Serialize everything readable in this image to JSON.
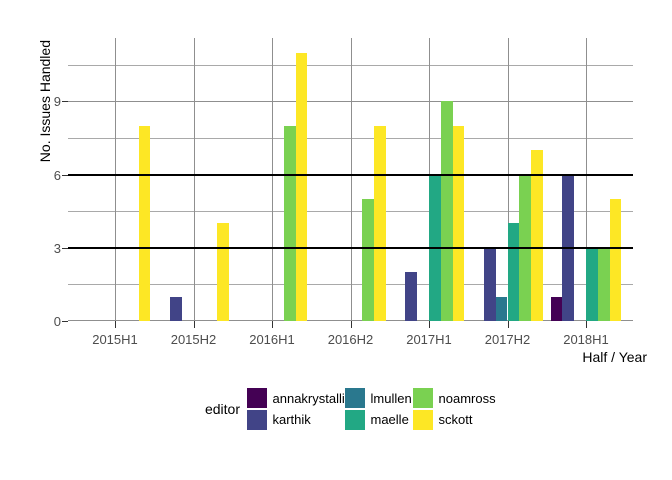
{
  "chart_data": {
    "type": "bar",
    "title": "",
    "xlabel": "Half / Year",
    "ylabel": "No. Issues Handled",
    "legend_title": "editor",
    "legend_position": "bottom",
    "categories": [
      "2015H1",
      "2015H2",
      "2016H1",
      "2016H2",
      "2017H1",
      "2017H2",
      "2018H1"
    ],
    "series": [
      {
        "name": "annakrystalli",
        "color": "#440154",
        "values": [
          null,
          null,
          null,
          null,
          null,
          null,
          1
        ]
      },
      {
        "name": "karthik",
        "color": "#414487",
        "values": [
          null,
          1,
          null,
          null,
          2,
          3,
          6
        ]
      },
      {
        "name": "lmullen",
        "color": "#2A788E",
        "values": [
          null,
          null,
          null,
          null,
          null,
          1,
          null
        ]
      },
      {
        "name": "maelle",
        "color": "#22A884",
        "values": [
          null,
          null,
          null,
          null,
          6,
          4,
          3
        ]
      },
      {
        "name": "noamross",
        "color": "#7AD151",
        "values": [
          null,
          null,
          8,
          5,
          9,
          6,
          3
        ]
      },
      {
        "name": "sckott",
        "color": "#FDE725",
        "values": [
          8,
          4,
          11,
          8,
          8,
          7,
          5
        ]
      }
    ],
    "y_ticks": [
      0,
      3,
      6,
      9
    ],
    "y_minor_gridlines": [
      1.5,
      4.5,
      7.5,
      10.5
    ],
    "ylim": [
      0,
      11.6
    ],
    "reference_lines": [
      3,
      6
    ],
    "grid": true,
    "colors": {
      "background": "#ffffff",
      "grid_major": "#8f8f8f",
      "grid_minor": "#a9a9a9",
      "reference_line": "#000000",
      "axis_text": "#4d4d4d",
      "axis_title": "#000000",
      "tick_mark": "#333333"
    }
  }
}
